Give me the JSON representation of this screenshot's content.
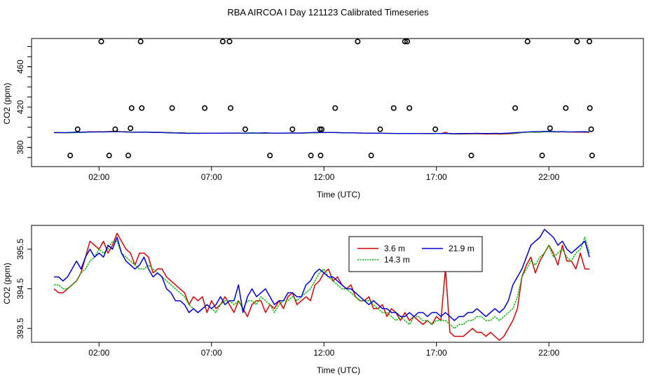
{
  "title": "RBA AIRCOA I  Day 121123  Calibrated Timeseries",
  "colors": {
    "3.6 m": "#dd0000",
    "14.3 m": "#00bb00",
    "21.9 m": "#0000dd",
    "axis": "#000000"
  },
  "chart_data": [
    {
      "type": "scatter",
      "xlabel": "Time (UTC)",
      "ylabel": "CO2 (ppm)",
      "xlim": [
        -1.0,
        26.2
      ],
      "ylim": [
        361,
        488
      ],
      "x_ticks": [
        2,
        7,
        12,
        17,
        22
      ],
      "x_tick_labels": [
        "02:00",
        "07:00",
        "12:00",
        "17:00",
        "22:00"
      ],
      "y_ticks": [
        380,
        420,
        460
      ],
      "y_tick_labels": [
        "380",
        "420",
        "460"
      ],
      "points_x_hours": [
        0.72,
        1.05,
        2.1,
        2.45,
        2.72,
        3.3,
        3.4,
        3.45,
        3.9,
        3.85,
        5.25,
        6.7,
        7.5,
        7.8,
        7.85,
        8.5,
        9.6,
        10.6,
        11.42,
        11.82,
        11.85,
        11.9,
        12.5,
        13.5,
        14.1,
        14.5,
        15.1,
        15.6,
        15.7,
        15.8,
        16.95,
        18.55,
        20.5,
        21.05,
        21.7,
        22.05,
        22.75,
        23.25,
        23.8,
        23.82,
        23.88,
        23.92
      ],
      "points_y_ppm": [
        372,
        398,
        485,
        372,
        398,
        372,
        399,
        419,
        419,
        485,
        419,
        419,
        485,
        485,
        419,
        398,
        372,
        398,
        372,
        398,
        372,
        398,
        419,
        485,
        372,
        398,
        419,
        485,
        485,
        419,
        398,
        372,
        419,
        485,
        372,
        399,
        419,
        485,
        485,
        419,
        398,
        372
      ],
      "series": [
        {
          "name": "3.6 m",
          "x_start_hours": 0,
          "x_step_hours": 0.2,
          "values": [
            394.5,
            394.7,
            394.5,
            394.6,
            394.6,
            394.8,
            395.0,
            395.3,
            395.6,
            395.5,
            395.7,
            395.6,
            395.8,
            395.9,
            396.0,
            395.6,
            395.7,
            395.3,
            395.1,
            395.3,
            395.3,
            395.2,
            395.0,
            395.1,
            395.0,
            394.7,
            394.8,
            394.6,
            394.5,
            394.4,
            394.2,
            394.3,
            394.2,
            394.1,
            394.0,
            394.1,
            394.0,
            394.1,
            394.2,
            394.1,
            394.0,
            394.2,
            394.1,
            394.0,
            394.1,
            394.1,
            394.2,
            394.0,
            394.1,
            394.0,
            394.1,
            394.0,
            394.2,
            394.3,
            394.1,
            394.2,
            394.3,
            394.4,
            394.5,
            394.6,
            394.8,
            394.9,
            394.7,
            394.8,
            394.6,
            394.5,
            394.6,
            394.4,
            394.3,
            394.2,
            394.3,
            394.1,
            394.0,
            394.1,
            393.9,
            394.0,
            393.9,
            393.8,
            393.8,
            393.7,
            393.8,
            393.7,
            393.6,
            393.7,
            393.6,
            393.8,
            393.7,
            395.0,
            393.5,
            393.3,
            393.3,
            393.4,
            393.4,
            393.5,
            393.5,
            393.4,
            393.3,
            393.4,
            393.3,
            393.2,
            393.3,
            393.5,
            393.7,
            394.0,
            394.8,
            395.2,
            395.3,
            395.0,
            395.2,
            395.4,
            395.6,
            395.5,
            395.3,
            395.5,
            395.3,
            395.2,
            395.1,
            395.2,
            395.0,
            395.0
          ]
        },
        {
          "name": "14.3 m",
          "x_start_hours": 0,
          "x_step_hours": 0.2,
          "values": [
            394.6,
            394.6,
            394.5,
            394.5,
            394.6,
            394.7,
            394.8,
            395.0,
            395.2,
            395.3,
            395.4,
            395.5,
            395.5,
            395.6,
            395.7,
            395.5,
            395.4,
            395.2,
            395.1,
            395.0,
            395.0,
            395.1,
            395.0,
            394.9,
            394.8,
            394.7,
            394.6,
            394.5,
            394.4,
            394.3,
            394.2,
            394.1,
            394.0,
            394.0,
            394.1,
            394.0,
            394.0,
            394.1,
            394.1,
            394.2,
            394.1,
            394.2,
            394.0,
            394.1,
            394.2,
            394.1,
            394.2,
            394.2,
            394.1,
            394.0,
            394.1,
            394.1,
            394.2,
            394.3,
            394.2,
            394.3,
            394.4,
            394.5,
            394.6,
            394.8,
            394.9,
            394.8,
            394.7,
            394.6,
            394.5,
            394.5,
            394.4,
            394.3,
            394.3,
            394.2,
            394.2,
            394.1,
            394.0,
            394.0,
            393.9,
            393.9,
            393.8,
            393.8,
            393.7,
            393.7,
            393.8,
            393.8,
            393.7,
            393.7,
            393.6,
            393.7,
            393.7,
            393.7,
            393.6,
            393.5,
            393.6,
            393.6,
            393.7,
            393.7,
            393.8,
            393.8,
            393.7,
            393.7,
            393.8,
            393.7,
            393.8,
            393.9,
            394.0,
            394.3,
            394.7,
            395.0,
            395.2,
            395.2,
            395.3,
            395.4,
            395.5,
            395.4,
            395.4,
            395.5,
            395.4,
            395.3,
            395.4,
            395.5,
            395.6,
            395.4
          ]
        },
        {
          "name": "21.9 m",
          "x_start_hours": 0,
          "x_step_hours": 0.2,
          "values": [
            394.8,
            394.8,
            394.7,
            394.8,
            395.0,
            395.2,
            395.1,
            395.3,
            395.4,
            395.3,
            395.4,
            395.3,
            395.5,
            395.6,
            395.8,
            395.4,
            395.3,
            395.1,
            395.0,
            395.1,
            395.2,
            395.0,
            394.9,
            394.9,
            394.8,
            394.5,
            394.4,
            394.3,
            394.2,
            394.1,
            393.9,
            394.0,
            393.9,
            394.0,
            394.1,
            394.0,
            394.1,
            394.2,
            394.1,
            394.3,
            394.2,
            394.4,
            394.0,
            394.3,
            394.4,
            394.3,
            394.4,
            394.5,
            394.3,
            394.1,
            394.2,
            394.2,
            394.3,
            394.4,
            394.3,
            394.3,
            394.5,
            394.7,
            394.9,
            395.0,
            394.9,
            394.8,
            394.8,
            394.7,
            394.6,
            394.5,
            394.5,
            394.4,
            394.3,
            394.2,
            394.1,
            394.2,
            394.1,
            394.0,
            394.0,
            393.9,
            393.9,
            393.8,
            393.8,
            393.9,
            393.8,
            393.9,
            393.9,
            393.8,
            393.9,
            393.9,
            393.8,
            393.9,
            393.8,
            393.7,
            393.8,
            393.8,
            393.9,
            393.9,
            394.0,
            393.9,
            393.8,
            393.9,
            394.0,
            393.9,
            394.0,
            394.2,
            394.5,
            394.8,
            395.0,
            395.3,
            395.6,
            395.7,
            395.7,
            395.9,
            396.0,
            395.8,
            395.6,
            395.7,
            395.5,
            395.4,
            395.5,
            395.6,
            395.7,
            395.3
          ]
        }
      ]
    },
    {
      "type": "line",
      "xlabel": "Time (UTC)",
      "ylabel": "CO2 (ppm)",
      "xlim": [
        -1.0,
        26.2
      ],
      "ylim": [
        393.15,
        396.1
      ],
      "x_ticks": [
        2,
        7,
        12,
        17,
        22
      ],
      "x_tick_labels": [
        "02:00",
        "07:00",
        "12:00",
        "17:00",
        "22:00"
      ],
      "y_ticks": [
        393.5,
        394.5,
        395.5
      ],
      "y_tick_labels": [
        "393.5",
        "394.5",
        "395.5"
      ],
      "legend": [
        "3.6 m",
        "21.9 m",
        "14.3 m"
      ],
      "legend_position": "top-center",
      "series": [
        {
          "name": "3.6 m",
          "x_start_hours": 0,
          "x_step_hours": 0.2,
          "values": [
            394.5,
            394.4,
            394.4,
            394.5,
            394.6,
            394.7,
            394.9,
            395.3,
            395.7,
            395.6,
            395.5,
            395.7,
            395.4,
            395.6,
            395.9,
            395.7,
            395.5,
            395.4,
            395.1,
            395.4,
            395.4,
            395.3,
            394.9,
            395.0,
            395.0,
            394.8,
            394.7,
            394.6,
            394.5,
            394.4,
            394.1,
            394.3,
            394.2,
            394.3,
            393.9,
            394.2,
            394.0,
            394.1,
            394.3,
            394.1,
            393.9,
            394.2,
            394.0,
            393.8,
            394.1,
            394.2,
            394.2,
            393.9,
            394.1,
            394.0,
            394.2,
            394.0,
            394.3,
            394.4,
            394.1,
            394.2,
            394.3,
            394.2,
            394.6,
            394.7,
            394.9,
            395.0,
            394.7,
            394.8,
            394.6,
            394.5,
            394.6,
            394.3,
            394.2,
            394.2,
            394.3,
            394.0,
            394.0,
            394.1,
            393.8,
            394.0,
            393.9,
            393.7,
            393.9,
            393.7,
            393.8,
            393.7,
            393.6,
            393.7,
            393.6,
            393.8,
            393.7,
            395.0,
            393.4,
            393.3,
            393.3,
            393.3,
            393.4,
            393.5,
            393.4,
            393.4,
            393.3,
            393.4,
            393.3,
            393.2,
            393.3,
            393.5,
            393.7,
            394.0,
            394.8,
            395.1,
            395.3,
            394.9,
            395.2,
            395.4,
            395.6,
            395.4,
            395.1,
            395.6,
            395.2,
            395.2,
            395.0,
            395.4,
            395.0,
            395.0
          ]
        },
        {
          "name": "14.3 m",
          "x_start_hours": 0,
          "x_step_hours": 0.2,
          "values": [
            394.6,
            394.6,
            394.5,
            394.5,
            394.6,
            394.7,
            394.9,
            395.0,
            395.2,
            395.3,
            395.5,
            395.4,
            395.5,
            395.7,
            395.7,
            395.4,
            395.3,
            395.2,
            395.1,
            395.0,
            395.0,
            395.1,
            395.0,
            394.9,
            394.8,
            394.7,
            394.6,
            394.5,
            394.4,
            394.3,
            394.1,
            394.0,
            393.9,
            394.0,
            394.1,
            394.0,
            393.9,
            394.1,
            394.2,
            394.2,
            394.1,
            394.2,
            394.0,
            394.2,
            394.2,
            394.1,
            394.3,
            394.2,
            394.1,
            393.9,
            394.1,
            394.2,
            394.2,
            394.3,
            394.2,
            394.3,
            394.4,
            394.5,
            394.7,
            394.9,
            395.0,
            394.8,
            394.7,
            394.6,
            394.5,
            394.5,
            394.4,
            394.3,
            394.2,
            394.2,
            394.2,
            394.1,
            394.0,
            393.9,
            393.9,
            393.8,
            393.7,
            393.8,
            393.7,
            393.6,
            393.8,
            393.8,
            393.7,
            393.7,
            393.6,
            393.7,
            393.7,
            393.7,
            393.6,
            393.5,
            393.6,
            393.6,
            393.7,
            393.7,
            393.8,
            393.8,
            393.7,
            393.7,
            393.8,
            393.7,
            393.8,
            393.9,
            394.0,
            394.3,
            394.8,
            395.0,
            395.2,
            395.1,
            395.3,
            395.4,
            395.6,
            395.3,
            395.4,
            395.5,
            395.3,
            395.2,
            395.4,
            395.5,
            395.8,
            395.4
          ]
        },
        {
          "name": "21.9 m",
          "x_start_hours": 0,
          "x_step_hours": 0.2,
          "values": [
            394.8,
            394.8,
            394.7,
            394.8,
            395.0,
            395.2,
            395.0,
            395.3,
            395.5,
            395.3,
            395.4,
            395.3,
            395.6,
            395.5,
            395.8,
            395.4,
            395.2,
            395.1,
            395.0,
            395.1,
            395.3,
            395.0,
            394.8,
            394.9,
            394.8,
            394.5,
            394.4,
            394.2,
            394.2,
            394.1,
            393.9,
            394.0,
            393.9,
            394.0,
            394.1,
            394.0,
            394.1,
            394.3,
            394.1,
            394.2,
            394.2,
            394.6,
            393.9,
            394.3,
            394.5,
            394.3,
            394.4,
            394.5,
            394.3,
            394.1,
            394.2,
            394.2,
            394.4,
            394.4,
            394.3,
            394.3,
            394.6,
            394.7,
            394.9,
            395.0,
            394.9,
            394.8,
            394.8,
            394.7,
            394.6,
            394.5,
            394.5,
            394.4,
            394.3,
            394.2,
            394.1,
            394.2,
            394.1,
            394.0,
            394.0,
            393.9,
            393.9,
            393.8,
            393.8,
            393.9,
            393.8,
            393.9,
            393.9,
            393.8,
            393.9,
            393.9,
            393.8,
            393.9,
            393.8,
            393.7,
            393.8,
            393.8,
            393.9,
            393.9,
            394.0,
            393.9,
            393.8,
            393.9,
            394.0,
            393.9,
            394.0,
            394.2,
            394.6,
            394.8,
            395.0,
            395.3,
            395.6,
            395.7,
            395.8,
            396.0,
            395.9,
            395.8,
            395.6,
            395.7,
            395.5,
            395.4,
            395.5,
            395.6,
            395.7,
            395.3
          ]
        }
      ]
    }
  ]
}
